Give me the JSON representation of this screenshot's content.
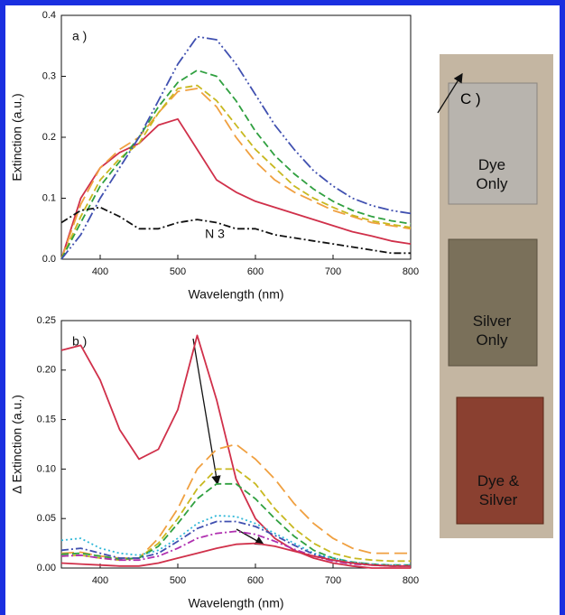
{
  "chart_data": [
    {
      "type": "line",
      "panel_label": "a )",
      "xlabel": "Wavelength (nm)",
      "ylabel": "Extinction (a.u.)",
      "annotation": "N 3",
      "xlim": [
        350,
        800
      ],
      "xticks": [
        400,
        500,
        600,
        700,
        800
      ],
      "ylim": [
        0,
        0.4
      ],
      "yticks": [
        {
          "value": 0,
          "label": "0.0"
        },
        0.1,
        0.2,
        0.3,
        0.4
      ],
      "x": [
        350,
        375,
        400,
        425,
        450,
        475,
        500,
        525,
        550,
        575,
        600,
        625,
        650,
        675,
        700,
        725,
        750,
        775,
        800
      ],
      "series": [
        {
          "color": "#d0304a",
          "style": "solid",
          "values": [
            0.0,
            0.1,
            0.15,
            0.175,
            0.19,
            0.22,
            0.23,
            0.18,
            0.13,
            0.11,
            0.095,
            0.085,
            0.075,
            0.065,
            0.055,
            0.045,
            0.038,
            0.03,
            0.025
          ]
        },
        {
          "color": "#f0a040",
          "style": "longdash",
          "values": [
            0.0,
            0.09,
            0.15,
            0.18,
            0.2,
            0.24,
            0.275,
            0.28,
            0.25,
            0.2,
            0.16,
            0.13,
            0.11,
            0.095,
            0.08,
            0.07,
            0.06,
            0.055,
            0.05
          ]
        },
        {
          "color": "#c8b820",
          "style": "dash",
          "values": [
            0.0,
            0.07,
            0.13,
            0.165,
            0.19,
            0.24,
            0.28,
            0.285,
            0.26,
            0.22,
            0.18,
            0.15,
            0.12,
            0.1,
            0.085,
            0.072,
            0.063,
            0.057,
            0.052
          ]
        },
        {
          "color": "#30a040",
          "style": "dash",
          "values": [
            0.0,
            0.06,
            0.12,
            0.16,
            0.2,
            0.25,
            0.29,
            0.31,
            0.3,
            0.26,
            0.21,
            0.17,
            0.14,
            0.115,
            0.095,
            0.08,
            0.07,
            0.063,
            0.058
          ]
        },
        {
          "color": "#4050b0",
          "style": "dashdotdot",
          "values": [
            0.0,
            0.04,
            0.1,
            0.15,
            0.2,
            0.26,
            0.32,
            0.365,
            0.36,
            0.32,
            0.27,
            0.22,
            0.18,
            0.145,
            0.12,
            0.1,
            0.088,
            0.08,
            0.075
          ]
        },
        {
          "color": "#111111",
          "style": "dashdot",
          "values": [
            0.06,
            0.08,
            0.085,
            0.07,
            0.05,
            0.05,
            0.06,
            0.065,
            0.06,
            0.05,
            0.05,
            0.04,
            0.035,
            0.03,
            0.025,
            0.02,
            0.015,
            0.01,
            0.01
          ]
        }
      ]
    },
    {
      "type": "line",
      "panel_label": "b )",
      "xlabel": "Wavelength (nm)",
      "ylabel": "Δ Extinction (a.u.)",
      "xlim": [
        350,
        800
      ],
      "xticks": [
        400,
        500,
        600,
        700,
        800
      ],
      "ylim": [
        0,
        0.25
      ],
      "yticks": [
        {
          "value": 0,
          "label": "0.00"
        },
        0.05,
        {
          "value": 0.1,
          "label": "0.10"
        },
        0.15,
        {
          "value": 0.2,
          "label": "0.20"
        },
        0.25
      ],
      "x": [
        350,
        375,
        400,
        425,
        450,
        475,
        500,
        525,
        550,
        575,
        600,
        625,
        650,
        675,
        700,
        725,
        750,
        775,
        800
      ],
      "series": [
        {
          "color": "#d0304a",
          "style": "solid",
          "values": [
            0.22,
            0.225,
            0.19,
            0.14,
            0.11,
            0.12,
            0.16,
            0.235,
            0.17,
            0.09,
            0.05,
            0.03,
            0.018,
            0.01,
            0.005,
            0.002,
            0,
            0,
            0
          ]
        },
        {
          "color": "#f0a040",
          "style": "longdash",
          "values": [
            0.015,
            0.016,
            0.012,
            0.01,
            0.01,
            0.03,
            0.06,
            0.1,
            0.12,
            0.125,
            0.11,
            0.09,
            0.065,
            0.045,
            0.03,
            0.02,
            0.015,
            0.015,
            0.015
          ]
        },
        {
          "color": "#c8b820",
          "style": "dash",
          "values": [
            0.012,
            0.013,
            0.01,
            0.008,
            0.01,
            0.025,
            0.05,
            0.08,
            0.1,
            0.1,
            0.085,
            0.06,
            0.04,
            0.025,
            0.015,
            0.01,
            0.008,
            0.007,
            0.007
          ]
        },
        {
          "color": "#30a040",
          "style": "dash",
          "values": [
            0.014,
            0.015,
            0.012,
            0.009,
            0.01,
            0.022,
            0.045,
            0.07,
            0.085,
            0.085,
            0.07,
            0.05,
            0.032,
            0.018,
            0.01,
            0.006,
            0.004,
            0.003,
            0.003
          ]
        },
        {
          "color": "#30b8d8",
          "style": "dot",
          "values": [
            0.028,
            0.03,
            0.02,
            0.015,
            0.013,
            0.018,
            0.03,
            0.045,
            0.053,
            0.052,
            0.045,
            0.035,
            0.025,
            0.015,
            0.01,
            0.006,
            0.004,
            0.003,
            0.003
          ]
        },
        {
          "color": "#4050b0",
          "style": "dashdot",
          "values": [
            0.018,
            0.02,
            0.015,
            0.01,
            0.01,
            0.015,
            0.027,
            0.04,
            0.047,
            0.047,
            0.042,
            0.033,
            0.023,
            0.014,
            0.008,
            0.005,
            0.003,
            0.002,
            0.002
          ]
        },
        {
          "color": "#b030b0",
          "style": "dashdot",
          "values": [
            0.012,
            0.013,
            0.01,
            0.008,
            0.008,
            0.012,
            0.02,
            0.03,
            0.035,
            0.037,
            0.034,
            0.027,
            0.019,
            0.012,
            0.007,
            0.004,
            0.003,
            0.002,
            0.002
          ]
        },
        {
          "color": "#d0304a",
          "style": "solid",
          "values": [
            0.005,
            0.004,
            0.003,
            0.002,
            0.002,
            0.005,
            0.01,
            0.015,
            0.02,
            0.024,
            0.025,
            0.022,
            0.017,
            0.012,
            0.008,
            0.005,
            0.003,
            0.002,
            0.002
          ]
        }
      ]
    }
  ],
  "photo": {
    "label": "C )",
    "samples": [
      "Dye Only",
      "Silver Only",
      "Dye & Silver"
    ]
  }
}
